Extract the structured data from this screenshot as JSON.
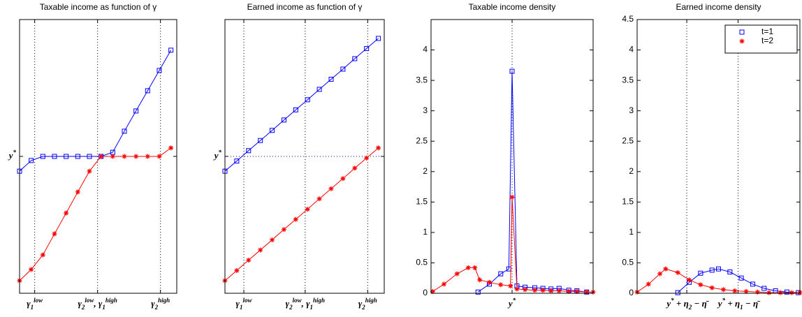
{
  "chart_data": [
    {
      "type": "line",
      "title": "Taxable income as function of γ",
      "x": [
        0,
        1,
        2,
        3,
        4,
        5,
        6,
        7,
        8,
        9,
        10,
        11,
        12,
        13
      ],
      "xlim": [
        0,
        13.5
      ],
      "ylim": [
        0,
        1
      ],
      "xticks": [
        {
          "value": 1.3,
          "label": [
            {
              "text": "γ"
            },
            {
              "text": "1",
              "pos": "sub"
            },
            {
              "text": "low",
              "pos": "super"
            }
          ]
        },
        {
          "value": 6.7,
          "label": [
            {
              "text": "γ"
            },
            {
              "text": "2",
              "pos": "sub"
            },
            {
              "text": "low",
              "pos": "super"
            },
            {
              "text": ", γ"
            },
            {
              "text": "1",
              "pos": "sub"
            },
            {
              "text": "high",
              "pos": "super"
            }
          ]
        },
        {
          "value": 12.1,
          "label": [
            {
              "text": "γ"
            },
            {
              "text": "2",
              "pos": "sub"
            },
            {
              "text": "high",
              "pos": "super"
            }
          ]
        }
      ],
      "yticks": [
        {
          "value": 0.5,
          "label": [
            {
              "text": "y"
            },
            {
              "text": "*",
              "pos": "super"
            }
          ]
        }
      ],
      "xgrid": true,
      "series": [
        {
          "color": "#0000ff",
          "marker": "square",
          "values": [
            0.446,
            0.485,
            0.5,
            0.5,
            0.5,
            0.5,
            0.5,
            0.5,
            0.515,
            0.592,
            0.666,
            0.74,
            0.814,
            0.888
          ]
        },
        {
          "color": "#ff0000",
          "marker": "star",
          "values": [
            0.046,
            0.087,
            0.14,
            0.217,
            0.293,
            0.37,
            0.446,
            0.5,
            0.5,
            0.5,
            0.5,
            0.5,
            0.5,
            0.531
          ]
        }
      ]
    },
    {
      "type": "line",
      "title": "Earned income as function of γ",
      "x": [
        0,
        1,
        2,
        3,
        4,
        5,
        6,
        7,
        8,
        9,
        10,
        11,
        12,
        13
      ],
      "xlim": [
        0,
        13.5
      ],
      "ylim": [
        0,
        1
      ],
      "xticks": [
        {
          "value": 1.6,
          "label": [
            {
              "text": "γ"
            },
            {
              "text": "1",
              "pos": "sub"
            },
            {
              "text": "low",
              "pos": "super"
            }
          ]
        },
        {
          "value": 6.8,
          "label": [
            {
              "text": "γ"
            },
            {
              "text": "2",
              "pos": "sub"
            },
            {
              "text": "low",
              "pos": "super"
            },
            {
              "text": ", γ"
            },
            {
              "text": "1",
              "pos": "sub"
            },
            {
              "text": "high",
              "pos": "super"
            }
          ]
        },
        {
          "value": 12.1,
          "label": [
            {
              "text": "γ"
            },
            {
              "text": "2",
              "pos": "sub"
            },
            {
              "text": "high",
              "pos": "super"
            }
          ]
        }
      ],
      "yticks": [
        {
          "value": 0.5,
          "label": [
            {
              "text": "y"
            },
            {
              "text": "*",
              "pos": "super"
            }
          ]
        }
      ],
      "xgrid": true,
      "ygrid_color": "#0000ff",
      "series": [
        {
          "color": "#0000ff",
          "marker": "square",
          "values": [
            0.446,
            0.483,
            0.521,
            0.558,
            0.595,
            0.633,
            0.67,
            0.707,
            0.745,
            0.782,
            0.819,
            0.857,
            0.894,
            0.931
          ]
        },
        {
          "color": "#ff0000",
          "marker": "star",
          "values": [
            0.046,
            0.083,
            0.121,
            0.158,
            0.195,
            0.233,
            0.27,
            0.307,
            0.345,
            0.382,
            0.419,
            0.457,
            0.494,
            0.531
          ]
        }
      ]
    },
    {
      "type": "line",
      "title": "Taxable income density",
      "xlim": [
        0,
        10
      ],
      "ylim": [
        0,
        4.5
      ],
      "xticks": [
        {
          "value": 5,
          "label": [
            {
              "text": "y"
            },
            {
              "text": "*",
              "pos": "super"
            }
          ]
        }
      ],
      "yticks": [
        0,
        0.5,
        1,
        1.5,
        2,
        2.5,
        3,
        3.5,
        4
      ],
      "xgrid": true,
      "series": [
        {
          "color": "#0000ff",
          "marker": "square",
          "x": [
            2.9,
            3.6,
            4.3,
            4.8,
            5.0,
            5.3,
            5.8,
            6.4,
            6.9,
            7.4,
            7.9,
            8.5,
            9.0,
            9.6
          ],
          "values": [
            0.02,
            0.15,
            0.32,
            0.4,
            3.65,
            0.12,
            0.1,
            0.09,
            0.08,
            0.07,
            0.08,
            0.05,
            0.04,
            0.02
          ]
        },
        {
          "color": "#ff0000",
          "marker": "star",
          "x": [
            0.1,
            0.8,
            1.6,
            2.3,
            2.7,
            3.0,
            3.6,
            4.3,
            4.9,
            5.0,
            5.3,
            5.8,
            6.4,
            6.9,
            7.4,
            7.9,
            8.5,
            9.0,
            9.6,
            10
          ],
          "values": [
            0.03,
            0.15,
            0.32,
            0.42,
            0.42,
            0.22,
            0.18,
            0.14,
            0.12,
            1.58,
            0.07,
            0.06,
            0.05,
            0.05,
            0.04,
            0.04,
            0.03,
            0.03,
            0.02,
            0.02
          ]
        }
      ]
    },
    {
      "type": "line",
      "title": "Earned income density",
      "xlim": [
        0,
        10
      ],
      "ylim": [
        0,
        4.5
      ],
      "xticks": [
        {
          "value": 3.05,
          "label": [
            {
              "text": "y"
            },
            {
              "text": "*",
              "pos": "super"
            },
            {
              "text": " + η"
            },
            {
              "text": "2",
              "pos": "sub"
            },
            {
              "text": " − η̄"
            }
          ]
        },
        {
          "value": 6.2,
          "label": [
            {
              "text": "y"
            },
            {
              "text": "*",
              "pos": "super"
            },
            {
              "text": " + η"
            },
            {
              "text": "1",
              "pos": "sub"
            },
            {
              "text": " − η̄"
            }
          ]
        }
      ],
      "yticks": [
        0,
        0.5,
        1,
        1.5,
        2,
        2.5,
        3,
        3.5,
        4,
        4.5
      ],
      "xgrid": true,
      "legend": "upper right",
      "series": [
        {
          "name": "t=1",
          "color": "#0000ff",
          "marker": "square",
          "x": [
            2.5,
            3.2,
            3.9,
            4.6,
            5.0,
            5.7,
            6.4,
            7.1,
            7.8,
            8.5,
            9.2,
            9.9
          ],
          "values": [
            0.01,
            0.18,
            0.33,
            0.38,
            0.4,
            0.35,
            0.25,
            0.15,
            0.08,
            0.04,
            0.02,
            0.01
          ]
        },
        {
          "name": "t=2",
          "color": "#ff0000",
          "marker": "star",
          "x": [
            0,
            0.7,
            1.4,
            1.75,
            2.5,
            3.2,
            3.9,
            4.6,
            5.3,
            6.0,
            6.7,
            7.4,
            8.1,
            8.8,
            9.5,
            10
          ],
          "values": [
            0.02,
            0.15,
            0.32,
            0.4,
            0.34,
            0.22,
            0.14,
            0.09,
            0.06,
            0.04,
            0.03,
            0.02,
            0.01,
            0.01,
            0.01,
            0.01
          ]
        }
      ]
    }
  ]
}
